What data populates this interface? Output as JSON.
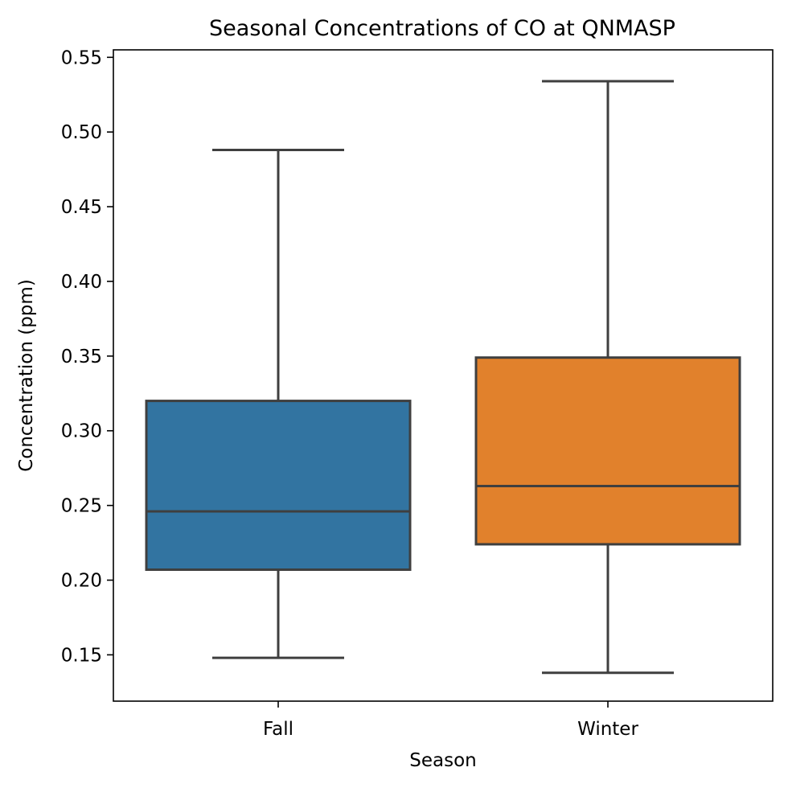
{
  "chart_data": {
    "type": "box",
    "title": "Seasonal Concentrations of CO at QNMASP",
    "xlabel": "Season",
    "ylabel": "Concentration (ppm)",
    "ylim": [
      0.119,
      0.555
    ],
    "yticks": [
      "0.15",
      "0.20",
      "0.25",
      "0.30",
      "0.35",
      "0.40",
      "0.45",
      "0.50",
      "0.55"
    ],
    "categories": [
      "Fall",
      "Winter"
    ],
    "boxes": [
      {
        "category": "Fall",
        "whisker_low": 0.148,
        "q1": 0.207,
        "median": 0.246,
        "q3": 0.32,
        "whisker_high": 0.488,
        "color": "#3274a1"
      },
      {
        "category": "Winter",
        "whisker_low": 0.138,
        "q1": 0.224,
        "median": 0.263,
        "q3": 0.349,
        "whisker_high": 0.534,
        "color": "#e1812c"
      }
    ],
    "line_color": "#3f3f3f",
    "grid": false,
    "legend": "none"
  }
}
